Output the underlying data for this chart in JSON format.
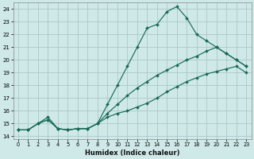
{
  "xlabel": "Humidex (Indice chaleur)",
  "xlim": [
    -0.5,
    23.5
  ],
  "ylim": [
    13.8,
    24.5
  ],
  "xticks": [
    0,
    1,
    2,
    3,
    4,
    5,
    6,
    7,
    8,
    9,
    10,
    11,
    12,
    13,
    14,
    15,
    16,
    17,
    18,
    19,
    20,
    21,
    22,
    23
  ],
  "yticks": [
    14,
    15,
    16,
    17,
    18,
    19,
    20,
    21,
    22,
    23,
    24
  ],
  "bg_color": "#cfe8e8",
  "grid_color": "#aac8c8",
  "line_color": "#1a6b5a",
  "series": [
    {
      "x": [
        0,
        1,
        2,
        3,
        4,
        5,
        6,
        7,
        8,
        9,
        10,
        11,
        12,
        13,
        14,
        15,
        16,
        17,
        18,
        19,
        20,
        21,
        22,
        23
      ],
      "y": [
        14.5,
        14.5,
        15.0,
        15.3,
        14.6,
        14.5,
        14.6,
        14.6,
        15.0,
        15.5,
        15.8,
        16.0,
        16.3,
        16.6,
        17.0,
        17.5,
        17.9,
        18.3,
        18.6,
        18.9,
        19.1,
        19.3,
        19.5,
        19.0
      ]
    },
    {
      "x": [
        0,
        1,
        2,
        3,
        4,
        5,
        6,
        7,
        8,
        9,
        10,
        11,
        12,
        13,
        14,
        15,
        16,
        17,
        18,
        19,
        20,
        21,
        22,
        23
      ],
      "y": [
        14.5,
        14.5,
        15.0,
        15.3,
        14.6,
        14.5,
        14.6,
        14.6,
        15.0,
        15.8,
        16.5,
        17.2,
        17.8,
        18.3,
        18.8,
        19.2,
        19.6,
        20.0,
        20.3,
        20.7,
        21.0,
        20.5,
        20.0,
        19.5
      ]
    },
    {
      "x": [
        0,
        1,
        2,
        3,
        4,
        5,
        6,
        7,
        8,
        9,
        10,
        11,
        12,
        13,
        14,
        15,
        16,
        17,
        18,
        19,
        20,
        21,
        22,
        23
      ],
      "y": [
        14.5,
        14.5,
        15.0,
        15.5,
        14.6,
        14.5,
        14.6,
        14.6,
        15.0,
        16.5,
        18.0,
        19.5,
        21.0,
        22.5,
        22.8,
        23.8,
        24.2,
        23.3,
        22.0,
        21.5,
        21.0,
        20.5,
        20.0,
        19.5
      ]
    }
  ]
}
